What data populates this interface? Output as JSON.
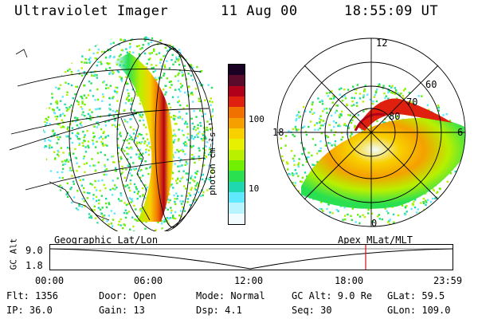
{
  "header": {
    "title": "Ultraviolet Imager",
    "date": "11 Aug 00",
    "time": "18:55:09 UT"
  },
  "colorbar": {
    "unit": "photon cm⁻²s⁻¹",
    "ticks": [
      "100",
      "10"
    ],
    "colors": [
      "#1a0022",
      "#5a0a2a",
      "#b0001a",
      "#e0200e",
      "#f07000",
      "#f5a000",
      "#f8d000",
      "#e6f000",
      "#b8f000",
      "#70f000",
      "#2ae050",
      "#20d8b0",
      "#60e8ff",
      "#b8f4ff",
      "#f0fcff"
    ]
  },
  "polar": {
    "labels": [
      "12",
      "60",
      "70",
      "80",
      "18",
      "6",
      "0"
    ]
  },
  "timeline": {
    "left_title": "Geographic Lat/Lon",
    "right_title": "Apex MLat/MLT",
    "y_axis_label": "GC Alt",
    "y_ticks": [
      "9.0",
      "1.8"
    ],
    "x_ticks": [
      "00:00",
      "06:00",
      "12:00",
      "18:00",
      "23:59"
    ],
    "current_time_marker": "18:55"
  },
  "info": {
    "flt": "Flt: 1356",
    "ip": "IP: 36.0",
    "door": "Door: Open",
    "gain": "Gain: 13",
    "mode": "Mode: Normal",
    "dsp": "Dsp:     4.1",
    "gcalt": "GC Alt: 9.0 Re",
    "seq": "Seq: 30",
    "glat": "GLat:  59.5",
    "glon": "GLon: 109.0"
  }
}
